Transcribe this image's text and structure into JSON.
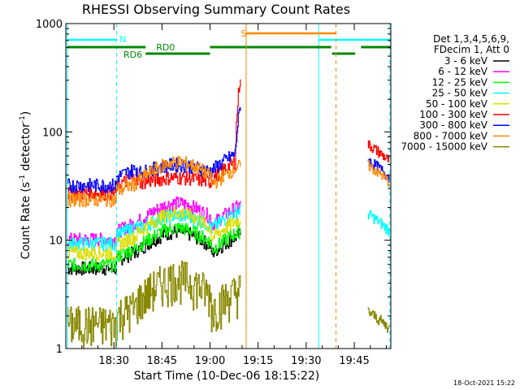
{
  "chart_data": {
    "type": "line",
    "title": "RHESSI Observing Summary Count Rates",
    "xlabel": "Start Time (10-Dec-06 18:15:22)",
    "ylabel_main": "Count Rate (s",
    "ylabel_sup1": "-1",
    "ylabel_mid": " detector",
    "ylabel_sup2": "-1",
    "ylabel_end": ")",
    "yscale": "log",
    "ylim": [
      1,
      1000
    ],
    "xlim_minutes": [
      18.25,
      19.94
    ],
    "x_ticks": [
      {
        "label": "18:30",
        "value": 18.5
      },
      {
        "label": "18:45",
        "value": 18.75
      },
      {
        "label": "19:00",
        "value": 19.0
      },
      {
        "label": "19:15",
        "value": 19.25
      },
      {
        "label": "19:30",
        "value": 19.5
      },
      {
        "label": "19:45",
        "value": 19.75
      }
    ],
    "y_ticks": [
      {
        "label": "1",
        "value": 1
      },
      {
        "label": "10",
        "value": 10
      },
      {
        "label": "100",
        "value": 100
      },
      {
        "label": "1000",
        "value": 1000
      }
    ],
    "legend_header_1": "Det 1,3,4,5,6,9,",
    "legend_header_2": "FDecim 1, Att 0",
    "legend_position": "top-right, outside plot",
    "series": [
      {
        "name": "3 - 6 keV",
        "color": "#000000",
        "pre": 6.5,
        "peak": 12,
        "post": 0
      },
      {
        "name": "6 - 12 keV",
        "color": "#ff00ff",
        "pre": 12,
        "peak": 22,
        "post": 0
      },
      {
        "name": "12 - 25 keV",
        "color": "#00ff00",
        "pre": 7,
        "peak": 13,
        "post": 0
      },
      {
        "name": "25 - 50 keV",
        "color": "#00ffff",
        "pre": 11,
        "peak": 17,
        "post": 16
      },
      {
        "name": "50 - 100 keV",
        "color": "#dddd00",
        "pre": 9,
        "peak": 18,
        "post": 0
      },
      {
        "name": "100 - 300 keV",
        "color": "#ff0000",
        "pre": 32,
        "peak": 38,
        "post": 70
      },
      {
        "name": "300 - 800 keV",
        "color": "#0000ff",
        "pre": 38,
        "peak": 50,
        "post": 50
      },
      {
        "name": "800 - 7000 keV",
        "color": "#ff8800",
        "pre": 28,
        "peak": 53,
        "post": 45
      },
      {
        "name": "7000 - 15000 keV",
        "color": "#888800",
        "pre": 2,
        "peak": 4.5,
        "post": 2
      }
    ],
    "annotations": [
      {
        "label": "N",
        "color": "#00ffff"
      },
      {
        "label": "RD0",
        "color": "#008800"
      },
      {
        "label": "RD6",
        "color": "#008800"
      },
      {
        "label": "S",
        "color": "#ff8800"
      }
    ],
    "footer_date": "18-Oct-2021 15:22"
  }
}
